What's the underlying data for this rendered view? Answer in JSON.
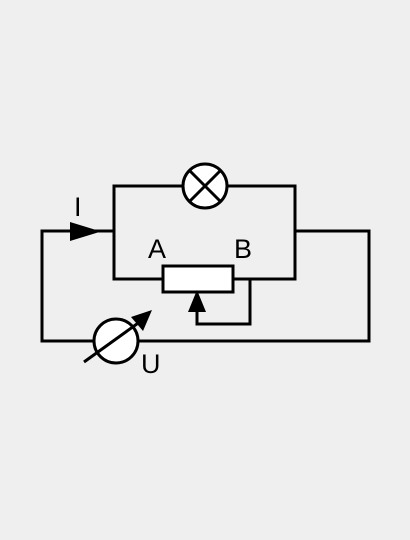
{
  "diagram": {
    "type": "circuit",
    "labels": {
      "current": "I",
      "terminal_a": "A",
      "terminal_b": "B",
      "voltage": "U"
    },
    "components": [
      {
        "name": "lamp",
        "symbol": "lamp-icon"
      },
      {
        "name": "rheostat",
        "symbol": "rheostat-icon",
        "wiper_shorted_to": "B"
      },
      {
        "name": "voltage source",
        "symbol": "adjustable-source-icon"
      }
    ],
    "colors": {
      "background": "#efefef",
      "line": "#000000",
      "fill": "#ffffff"
    }
  }
}
